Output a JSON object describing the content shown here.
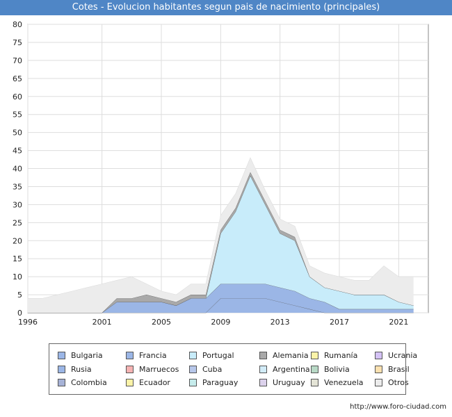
{
  "header": {
    "title": "Cotes - Evolucion habitantes segun pais de nacimiento (principales)"
  },
  "footer": {
    "source": "http://www.foro-ciudad.com"
  },
  "chart_data": {
    "type": "area",
    "stacked": true,
    "title": "Cotes - Evolucion habitantes segun pais de nacimiento (principales)",
    "xlim": [
      1996,
      2023
    ],
    "ylim": [
      0,
      80
    ],
    "x_ticks": [
      1996,
      2001,
      2005,
      2009,
      2013,
      2017,
      2021
    ],
    "y_ticks": [
      0,
      5,
      10,
      15,
      20,
      25,
      30,
      35,
      40,
      45,
      50,
      55,
      60,
      65,
      70,
      75,
      80
    ],
    "grid": true,
    "legend_position": "bottom",
    "x": [
      1996,
      1997,
      1998,
      1999,
      2000,
      2001,
      2002,
      2003,
      2004,
      2005,
      2006,
      2007,
      2008,
      2009,
      2010,
      2011,
      2012,
      2013,
      2014,
      2015,
      2016,
      2017,
      2018,
      2019,
      2020,
      2021,
      2022
    ],
    "series": [
      {
        "name": "Bulgaria",
        "color": "#9bb6e6",
        "values": [
          0,
          0,
          0,
          0,
          0,
          0,
          0,
          0,
          0,
          0,
          0,
          0,
          0,
          4,
          4,
          4,
          4,
          3,
          2,
          1,
          0,
          0,
          0,
          0,
          0,
          0,
          0
        ]
      },
      {
        "name": "Francia",
        "color": "#9bb6e6",
        "values": [
          0,
          0,
          0,
          0,
          0,
          0,
          3,
          3,
          3,
          3,
          2,
          4,
          4,
          4,
          4,
          4,
          4,
          4,
          4,
          3,
          3,
          1,
          1,
          1,
          1,
          1,
          1
        ]
      },
      {
        "name": "Portugal",
        "color": "#c8ecfa",
        "values": [
          0,
          0,
          0,
          0,
          0,
          0,
          0,
          0,
          0,
          0,
          0,
          0,
          0,
          14,
          20,
          30,
          22,
          15,
          14,
          6,
          4,
          5,
          4,
          4,
          4,
          2,
          1
        ]
      },
      {
        "name": "Alemania",
        "color": "#a9a9a9",
        "values": [
          0,
          0,
          0,
          0,
          0,
          0,
          1,
          1,
          2,
          1,
          1,
          1,
          1,
          1,
          1,
          1,
          1,
          1,
          1,
          0,
          0,
          0,
          0,
          0,
          0,
          0,
          0
        ]
      },
      {
        "name": "Rumanía",
        "color": "#fbf3a8",
        "values": [
          0,
          0,
          0,
          0,
          0,
          0,
          0,
          0,
          0,
          0,
          0,
          0,
          0,
          0,
          0,
          0,
          0,
          0,
          0,
          0,
          0,
          0,
          0,
          0,
          0,
          0,
          0
        ]
      },
      {
        "name": "Ucrania",
        "color": "#d4c2f6",
        "values": [
          0,
          0,
          0,
          0,
          0,
          0,
          0,
          0,
          0,
          0,
          0,
          0,
          0,
          0,
          0,
          0,
          0,
          0,
          0,
          0,
          0,
          0,
          0,
          0,
          0,
          0,
          0
        ]
      },
      {
        "name": "Rusia",
        "color": "#9bb6e6",
        "values": [
          0,
          0,
          0,
          0,
          0,
          0,
          0,
          0,
          0,
          0,
          0,
          0,
          0,
          0,
          0,
          0,
          0,
          0,
          0,
          0,
          0,
          0,
          0,
          0,
          0,
          0,
          0
        ]
      },
      {
        "name": "Marruecos",
        "color": "#f6b3b3",
        "values": [
          0,
          0,
          0,
          0,
          0,
          0,
          0,
          0,
          0,
          0,
          0,
          0,
          0,
          0,
          0,
          0,
          0,
          0,
          0,
          0,
          0,
          0,
          0,
          0,
          0,
          0,
          0
        ]
      },
      {
        "name": "Cuba",
        "color": "#b7c7ea",
        "values": [
          0,
          0,
          0,
          0,
          0,
          0,
          0,
          0,
          0,
          0,
          0,
          0,
          0,
          0,
          0,
          0,
          0,
          0,
          0,
          0,
          0,
          0,
          0,
          0,
          0,
          0,
          0
        ]
      },
      {
        "name": "Argentina",
        "color": "#d2ecf8",
        "values": [
          0,
          0,
          0,
          0,
          0,
          0,
          0,
          0,
          0,
          0,
          0,
          0,
          0,
          0,
          0,
          0,
          0,
          0,
          0,
          0,
          0,
          0,
          0,
          0,
          0,
          0,
          0
        ]
      },
      {
        "name": "Bolivia",
        "color": "#b8d9c6",
        "values": [
          0,
          0,
          0,
          0,
          0,
          0,
          0,
          0,
          0,
          0,
          0,
          0,
          0,
          0,
          0,
          0,
          0,
          0,
          0,
          0,
          0,
          0,
          0,
          0,
          0,
          0,
          0
        ]
      },
      {
        "name": "Brasil",
        "color": "#fbe1b0",
        "values": [
          0,
          0,
          0,
          0,
          0,
          0,
          0,
          0,
          0,
          0,
          0,
          0,
          0,
          0,
          0,
          0,
          0,
          0,
          0,
          0,
          0,
          0,
          0,
          0,
          0,
          0,
          0
        ]
      },
      {
        "name": "Colombia",
        "color": "#a6b2d6",
        "values": [
          0,
          0,
          0,
          0,
          0,
          0,
          0,
          0,
          0,
          0,
          0,
          0,
          0,
          0,
          0,
          0,
          0,
          0,
          0,
          0,
          0,
          0,
          0,
          0,
          0,
          0,
          0
        ]
      },
      {
        "name": "Ecuador",
        "color": "#fbf3a8",
        "values": [
          0,
          0,
          0,
          0,
          0,
          0,
          0,
          0,
          0,
          0,
          0,
          0,
          0,
          0,
          0,
          0,
          0,
          0,
          0,
          0,
          0,
          0,
          0,
          0,
          0,
          0,
          0
        ]
      },
      {
        "name": "Paraguay",
        "color": "#c6ecec",
        "values": [
          0,
          0,
          0,
          0,
          0,
          0,
          0,
          0,
          0,
          0,
          0,
          0,
          0,
          0,
          0,
          0,
          0,
          0,
          0,
          0,
          0,
          0,
          0,
          0,
          0,
          0,
          0
        ]
      },
      {
        "name": "Uruguay",
        "color": "#dcd2ec",
        "values": [
          0,
          0,
          0,
          0,
          0,
          0,
          0,
          0,
          0,
          0,
          0,
          0,
          0,
          0,
          0,
          0,
          0,
          0,
          0,
          0,
          0,
          0,
          0,
          0,
          0,
          0,
          0
        ]
      },
      {
        "name": "Venezuela",
        "color": "#e4e4d6",
        "values": [
          0,
          0,
          0,
          0,
          0,
          0,
          0,
          0,
          0,
          0,
          0,
          0,
          0,
          0,
          0,
          0,
          0,
          0,
          0,
          0,
          0,
          0,
          0,
          0,
          0,
          0,
          0
        ]
      },
      {
        "name": "Otros",
        "color": "#ececec",
        "values": [
          4,
          4,
          5,
          6,
          7,
          8,
          5,
          6,
          3,
          2,
          2,
          3,
          3,
          4,
          4,
          4,
          3,
          3,
          3,
          3,
          4,
          4,
          4,
          4,
          8,
          7,
          8
        ]
      }
    ]
  }
}
